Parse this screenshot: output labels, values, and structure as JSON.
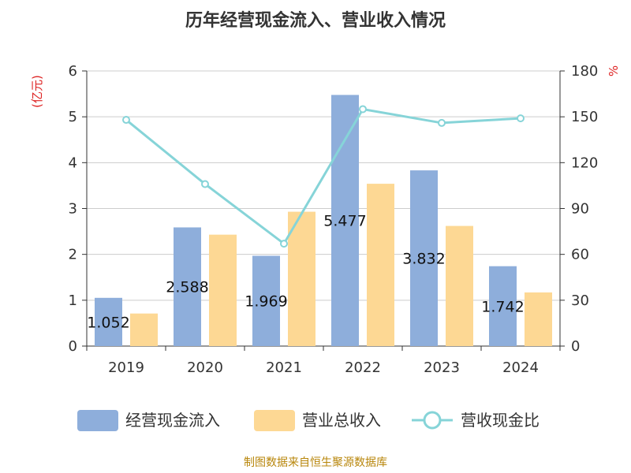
{
  "chart_data": {
    "type": "bar",
    "title": "历年经营现金流入、营业收入情况",
    "categories": [
      "2019",
      "2020",
      "2021",
      "2022",
      "2023",
      "2024"
    ],
    "series": [
      {
        "name": "经营现金流入",
        "type": "bar",
        "axis": "left",
        "color": "#8eaedb",
        "values": [
          1.052,
          2.588,
          1.969,
          5.477,
          3.832,
          1.742
        ]
      },
      {
        "name": "营业总收入",
        "type": "bar",
        "axis": "left",
        "color": "#fdd894",
        "values": [
          0.71,
          2.43,
          2.93,
          3.54,
          2.62,
          1.17
        ]
      },
      {
        "name": "营收现金比",
        "type": "line",
        "axis": "right",
        "color": "#86d4d8",
        "values": [
          148,
          106,
          67,
          155,
          146,
          149
        ]
      }
    ],
    "data_labels": [
      "1.052",
      "2.588",
      "1.969",
      "5.477",
      "3.832",
      "1.742"
    ],
    "y_left": {
      "label": "(亿元)",
      "min": 0,
      "max": 6,
      "ticks": [
        0,
        1,
        2,
        3,
        4,
        5,
        6
      ]
    },
    "y_right": {
      "label": "%",
      "min": 0,
      "max": 180,
      "ticks": [
        0,
        30,
        60,
        90,
        120,
        150,
        180
      ]
    },
    "grid": true,
    "legend": {
      "position": "bottom",
      "items": [
        "经营现金流入",
        "营业总收入",
        "营收现金比"
      ]
    }
  },
  "footer": {
    "source": "制图数据来自恒生聚源数据库"
  }
}
